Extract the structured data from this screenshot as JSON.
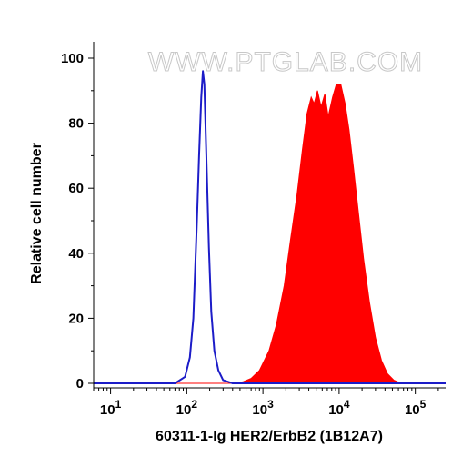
{
  "watermark": "WWW.PTGLAB.COM",
  "chart_data": {
    "type": "area",
    "xlabel": "60311-1-Ig HER2/ErbB2 (1B12A7)",
    "ylabel": "Relative cell number",
    "x_scale": "log",
    "xlim": [
      6,
      250000
    ],
    "ylim": [
      0,
      100
    ],
    "x_ticks": [
      {
        "value": 10,
        "base": "10",
        "exp": "1"
      },
      {
        "value": 100,
        "base": "10",
        "exp": "2"
      },
      {
        "value": 1000,
        "base": "10",
        "exp": "3"
      },
      {
        "value": 10000,
        "base": "10",
        "exp": "4"
      },
      {
        "value": 100000,
        "base": "10",
        "exp": "5"
      }
    ],
    "y_ticks": [
      0,
      20,
      40,
      60,
      80,
      100
    ],
    "grid": false,
    "series": [
      {
        "style": "outline",
        "color": "#1c1cc8",
        "points": [
          [
            6,
            0
          ],
          [
            30,
            0
          ],
          [
            70,
            0
          ],
          [
            95,
            2
          ],
          [
            110,
            8
          ],
          [
            122,
            20
          ],
          [
            135,
            48
          ],
          [
            145,
            70
          ],
          [
            155,
            88
          ],
          [
            163,
            96
          ],
          [
            170,
            92
          ],
          [
            180,
            72
          ],
          [
            195,
            42
          ],
          [
            210,
            22
          ],
          [
            230,
            10
          ],
          [
            260,
            4
          ],
          [
            300,
            1
          ],
          [
            400,
            0
          ],
          [
            250000,
            0
          ]
        ]
      },
      {
        "style": "filled",
        "color": "#ff0000",
        "points": [
          [
            6,
            0
          ],
          [
            400,
            0
          ],
          [
            550,
            0.5
          ],
          [
            700,
            1.5
          ],
          [
            900,
            4
          ],
          [
            1200,
            10
          ],
          [
            1500,
            18
          ],
          [
            1900,
            30
          ],
          [
            2300,
            44
          ],
          [
            2800,
            58
          ],
          [
            3300,
            72
          ],
          [
            3800,
            83
          ],
          [
            4300,
            88
          ],
          [
            4700,
            86
          ],
          [
            5200,
            90
          ],
          [
            5800,
            85
          ],
          [
            6500,
            89
          ],
          [
            7200,
            82
          ],
          [
            8200,
            88
          ],
          [
            9200,
            92
          ],
          [
            10500,
            92
          ],
          [
            12000,
            86
          ],
          [
            13500,
            78
          ],
          [
            15500,
            66
          ],
          [
            18000,
            52
          ],
          [
            21000,
            38
          ],
          [
            25000,
            25
          ],
          [
            30000,
            14
          ],
          [
            36000,
            7
          ],
          [
            43000,
            3
          ],
          [
            52000,
            1
          ],
          [
            65000,
            0
          ],
          [
            250000,
            0
          ]
        ]
      }
    ]
  }
}
